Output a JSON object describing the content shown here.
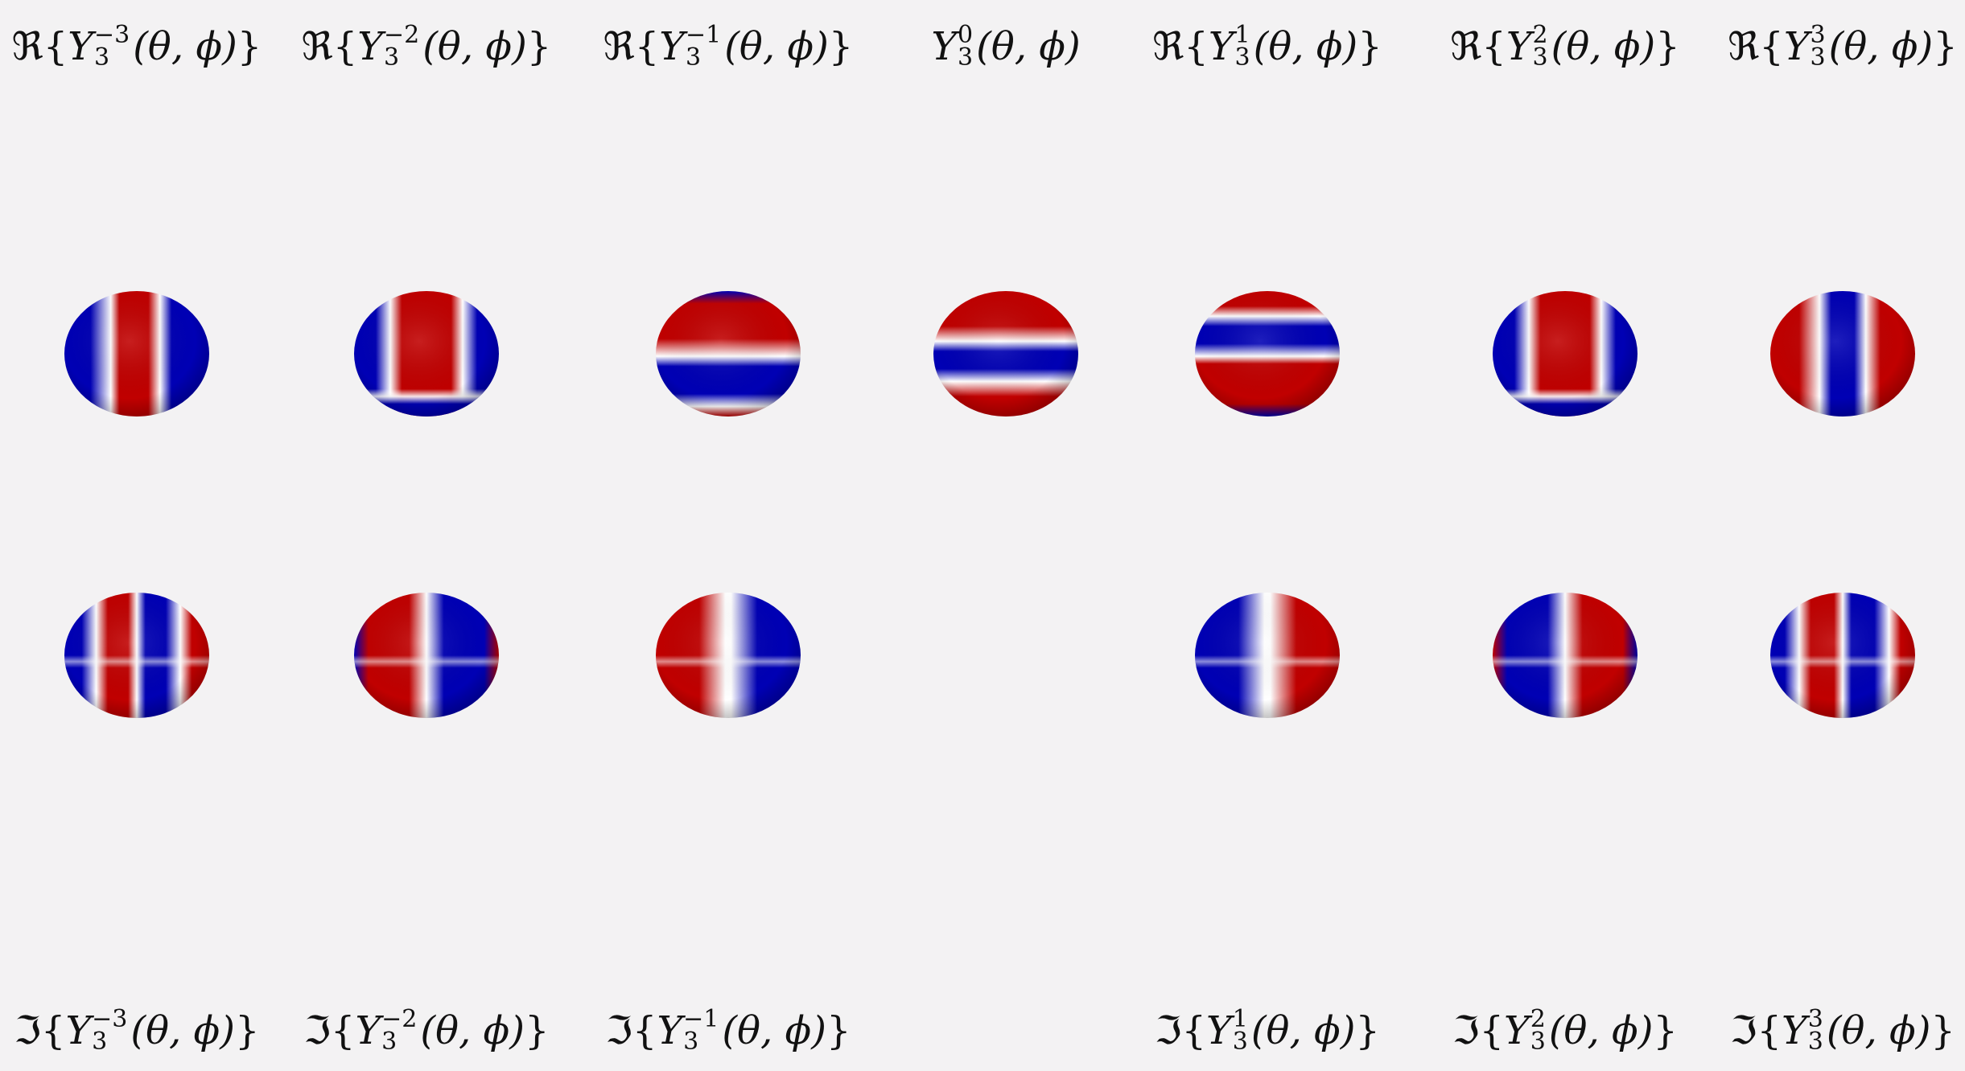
{
  "colors": {
    "background": "#f3f2f3",
    "positive": "#c00000",
    "negative": "#0000b4",
    "zero": "#ffffff"
  },
  "real_row": [
    {
      "op": "ℜ",
      "m": "−3",
      "l": "3",
      "args": "(θ, ϕ)",
      "open": "{",
      "close": "}",
      "pattern": "vstripes3"
    },
    {
      "op": "ℜ",
      "m": "−2",
      "l": "3",
      "args": "(θ, ϕ)",
      "open": "{",
      "close": "}",
      "pattern": "quad2"
    },
    {
      "op": "ℜ",
      "m": "−1",
      "l": "3",
      "args": "(θ, ϕ)",
      "open": "{",
      "close": "}",
      "pattern": "bands-rbr"
    },
    {
      "op": "",
      "m": "0",
      "l": "3",
      "args": "(θ, ϕ)",
      "open": "",
      "close": "",
      "pattern": "bands-zonal"
    },
    {
      "op": "ℜ",
      "m": "1",
      "l": "3",
      "args": "(θ, ϕ)",
      "open": "{",
      "close": "}",
      "pattern": "bands-brb"
    },
    {
      "op": "ℜ",
      "m": "2",
      "l": "3",
      "args": "(θ, ϕ)",
      "open": "{",
      "close": "}",
      "pattern": "quad2"
    },
    {
      "op": "ℜ",
      "m": "3",
      "l": "3",
      "args": "(θ, ϕ)",
      "open": "{",
      "close": "}",
      "pattern": "vstripes3b"
    }
  ],
  "imag_row": [
    {
      "op": "ℑ",
      "m": "−3",
      "l": "3",
      "args": "(θ, ϕ)",
      "open": "{",
      "close": "}",
      "pattern": "vstripes4"
    },
    {
      "op": "ℑ",
      "m": "−2",
      "l": "3",
      "args": "(θ, ϕ)",
      "open": "{",
      "close": "}",
      "pattern": "cross"
    },
    {
      "op": "ℑ",
      "m": "−1",
      "l": "3",
      "args": "(θ, ϕ)",
      "open": "{",
      "close": "}",
      "pattern": "half-bands"
    },
    null,
    {
      "op": "ℑ",
      "m": "1",
      "l": "3",
      "args": "(θ, ϕ)",
      "open": "{",
      "close": "}",
      "pattern": "half-bands-b"
    },
    {
      "op": "ℑ",
      "m": "2",
      "l": "3",
      "args": "(θ, ϕ)",
      "open": "{",
      "close": "}",
      "pattern": "cross-b"
    },
    {
      "op": "ℑ",
      "m": "3",
      "l": "3",
      "args": "(θ, ϕ)",
      "open": "{",
      "close": "}",
      "pattern": "vstripes4b"
    }
  ]
}
